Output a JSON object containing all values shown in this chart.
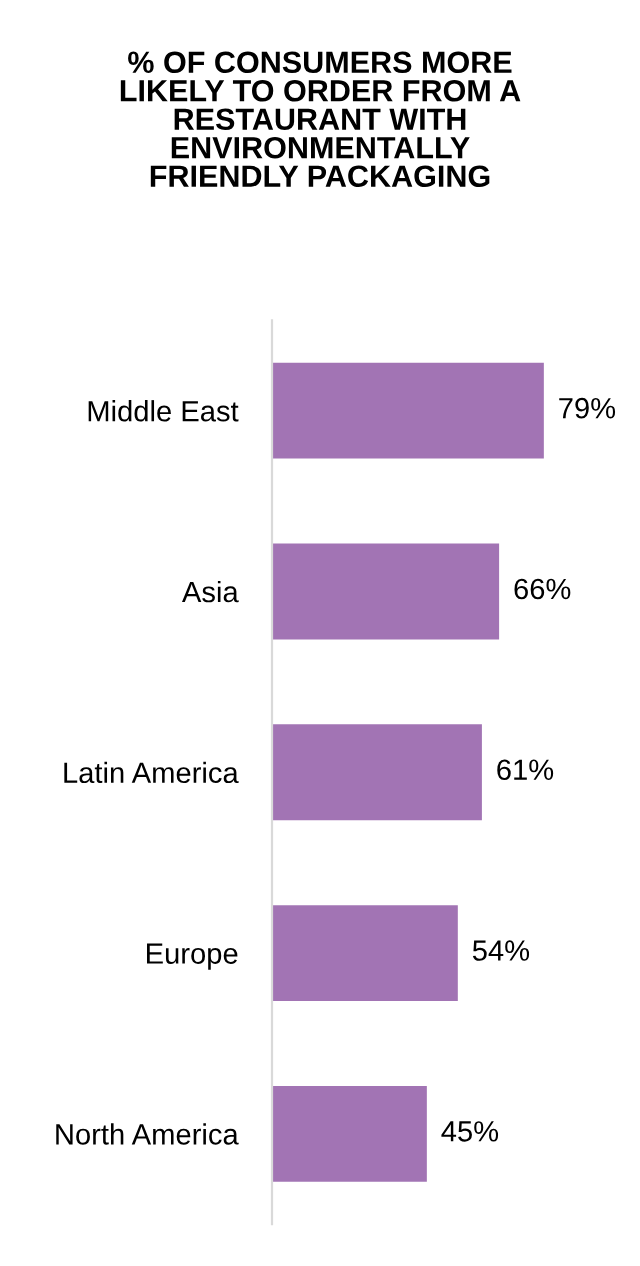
{
  "chart_data": {
    "type": "bar",
    "orientation": "horizontal",
    "title": "% OF CONSUMERS MORE\nLIKELY TO ORDER FROM A\nRESTAURANT WITH\nENVIRONMENTALLY\nFRIENDLY PACKAGING",
    "categories": [
      "Middle East",
      "Asia",
      "Latin America",
      "Europe",
      "North America"
    ],
    "values": [
      79,
      66,
      61,
      54,
      45
    ],
    "value_labels": [
      "79%",
      "66%",
      "61%",
      "54%",
      "45%"
    ],
    "color": "#a274b4",
    "tick_labels": "y",
    "grid": false,
    "legend": false
  }
}
